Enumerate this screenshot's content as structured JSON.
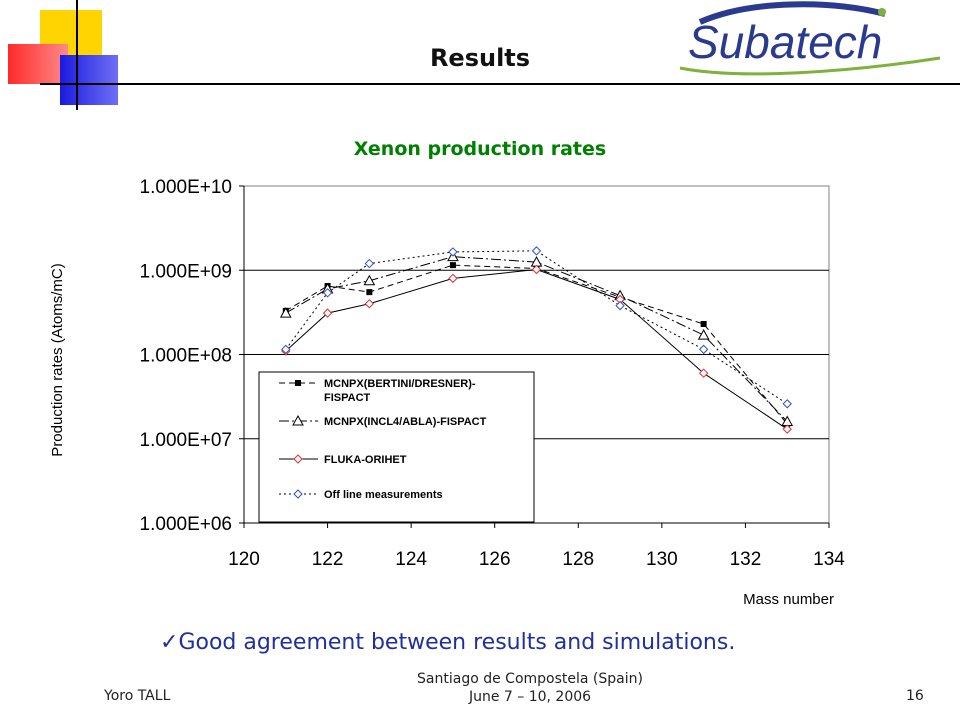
{
  "slide": {
    "title": "Results",
    "logo_text": "Subatech",
    "conclusion": "Good agreement between results and simulations.",
    "conclusion_mark": "✓",
    "footer": {
      "author": "Yoro TALL",
      "event_line1": "Santiago de Compostela (Spain)",
      "event_line2": "June 7 – 10, 2006",
      "page": "16"
    }
  },
  "chart_data": {
    "type": "line",
    "title": "Xenon production rates",
    "xlabel": "Mass number",
    "ylabel": "Production rates (Atoms/mC)",
    "xlim": [
      120,
      134
    ],
    "ylim": [
      1000000,
      10000000000
    ],
    "yscale": "log",
    "xticks": [
      "120",
      "122",
      "124",
      "126",
      "128",
      "130",
      "132",
      "134"
    ],
    "yticks": [
      "1.000E+10",
      "1.000E+09",
      "1.000E+08",
      "1.000E+07",
      "1.000E+06"
    ],
    "grid": "horizontal",
    "legend": "lower-left",
    "series": [
      {
        "name": "MCNPX(BERTINI/DRESNER)-FISPACT",
        "marker": "square",
        "dash": "6,4",
        "x": [
          121,
          122,
          123,
          125,
          127,
          129,
          131,
          133
        ],
        "y": [
          330000000,
          650000000,
          550000000,
          1150000000,
          1050000000,
          480000000,
          230000000,
          15000000
        ]
      },
      {
        "name": "MCNPX(INCL4/ABLA)-FISPACT",
        "marker": "triangle",
        "dash": "10,3,2,3",
        "x": [
          121,
          122,
          123,
          125,
          127,
          129,
          131,
          133
        ],
        "y": [
          310000000,
          600000000,
          750000000,
          1450000000,
          1250000000,
          500000000,
          170000000,
          16000000
        ]
      },
      {
        "name": "FLUKA-ORIHET",
        "marker": "diamond-red",
        "dash": "",
        "x": [
          121,
          122,
          123,
          125,
          127,
          129,
          131,
          133
        ],
        "y": [
          110000000,
          310000000,
          400000000,
          800000000,
          1020000000,
          450000000,
          60000000,
          13000000
        ]
      },
      {
        "name": "Off line measurements",
        "marker": "diamond-blue",
        "dash": "2,3",
        "x": [
          121,
          122,
          123,
          125,
          127,
          129,
          131,
          133
        ],
        "y": [
          115000000,
          540000000,
          1200000000,
          1650000000,
          1700000000,
          380000000,
          115000000,
          26000000
        ]
      }
    ]
  }
}
